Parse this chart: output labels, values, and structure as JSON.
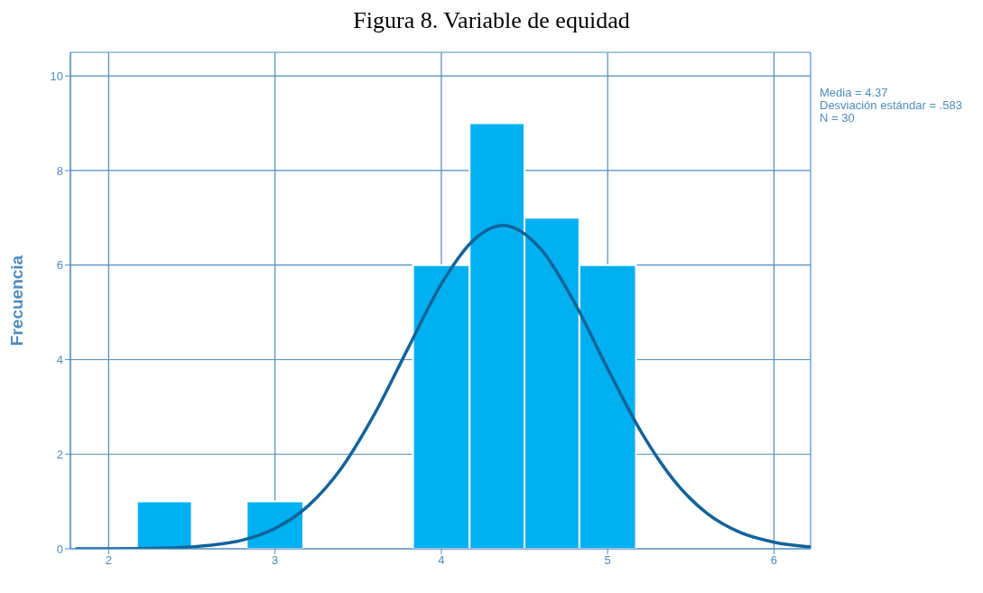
{
  "chart_data": {
    "type": "histogram",
    "title": "Figura 8. Variable de equidad",
    "ylabel": "Frecuencia",
    "bins": [
      2.17,
      2.5,
      2.83,
      3.17,
      3.83,
      4.17,
      4.5,
      4.83,
      5.17
    ],
    "values": [
      1,
      0,
      1,
      0,
      6,
      9,
      7,
      6
    ],
    "color": "#00b0f0",
    "xlim": [
      1.77,
      6.22
    ],
    "xticks": [
      2,
      3,
      4,
      5,
      6
    ],
    "ylim": [
      0,
      10.5
    ],
    "yticks": [
      0,
      2,
      4,
      6,
      8,
      10
    ],
    "grid": true,
    "annotations": [
      "Media = 4.37",
      "Desviación estándar = .583",
      "N = 30"
    ],
    "series": [
      {
        "type": "line",
        "color": "#11639a",
        "x": [
          1.8,
          2.0,
          2.4,
          2.6,
          2.8,
          3.0,
          3.2,
          3.4,
          3.6,
          3.8,
          4.0,
          4.2,
          4.37,
          4.6,
          4.8,
          5.0,
          5.2,
          5.4,
          5.6,
          5.8,
          6.0,
          6.22
        ],
        "values": [
          0,
          0,
          0.02,
          0.07,
          0.18,
          0.43,
          0.91,
          1.71,
          2.86,
          4.24,
          5.6,
          6.55,
          6.84,
          6.33,
          5.21,
          3.81,
          2.48,
          1.44,
          0.74,
          0.34,
          0.14,
          0.04
        ]
      }
    ]
  }
}
